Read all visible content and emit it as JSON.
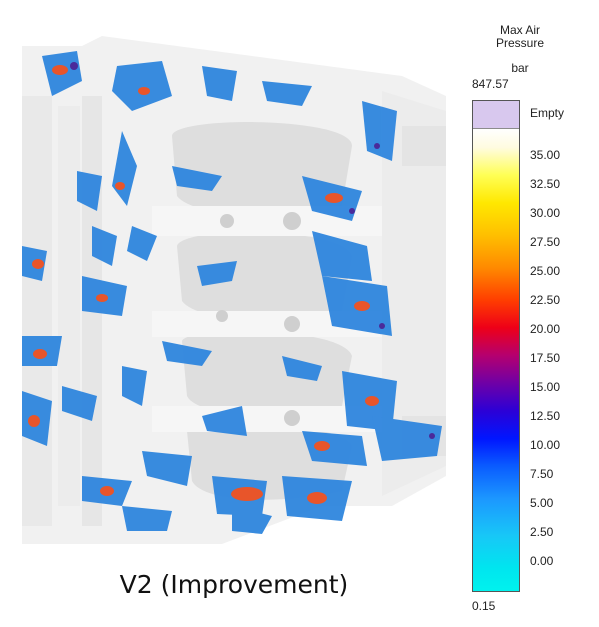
{
  "caption": "V2 (Improvement)",
  "legend": {
    "title_line1": "Max Air",
    "title_line2": "Pressure",
    "unit": "bar",
    "max_value": "847.57",
    "min_value": "0.15",
    "empty_label": "Empty",
    "empty_color": "#d8c8ee",
    "ticks": [
      "35.00",
      "32.50",
      "30.00",
      "27.50",
      "25.00",
      "22.50",
      "20.00",
      "17.50",
      "15.00",
      "12.50",
      "10.00",
      "7.50",
      "5.00",
      "2.50",
      "0.00"
    ]
  },
  "render_colors": {
    "casting": "#f1f1f1",
    "shadow": "#dcdcdc",
    "pressure_low": "#2f86de",
    "pressure_high": "#e8552a"
  }
}
